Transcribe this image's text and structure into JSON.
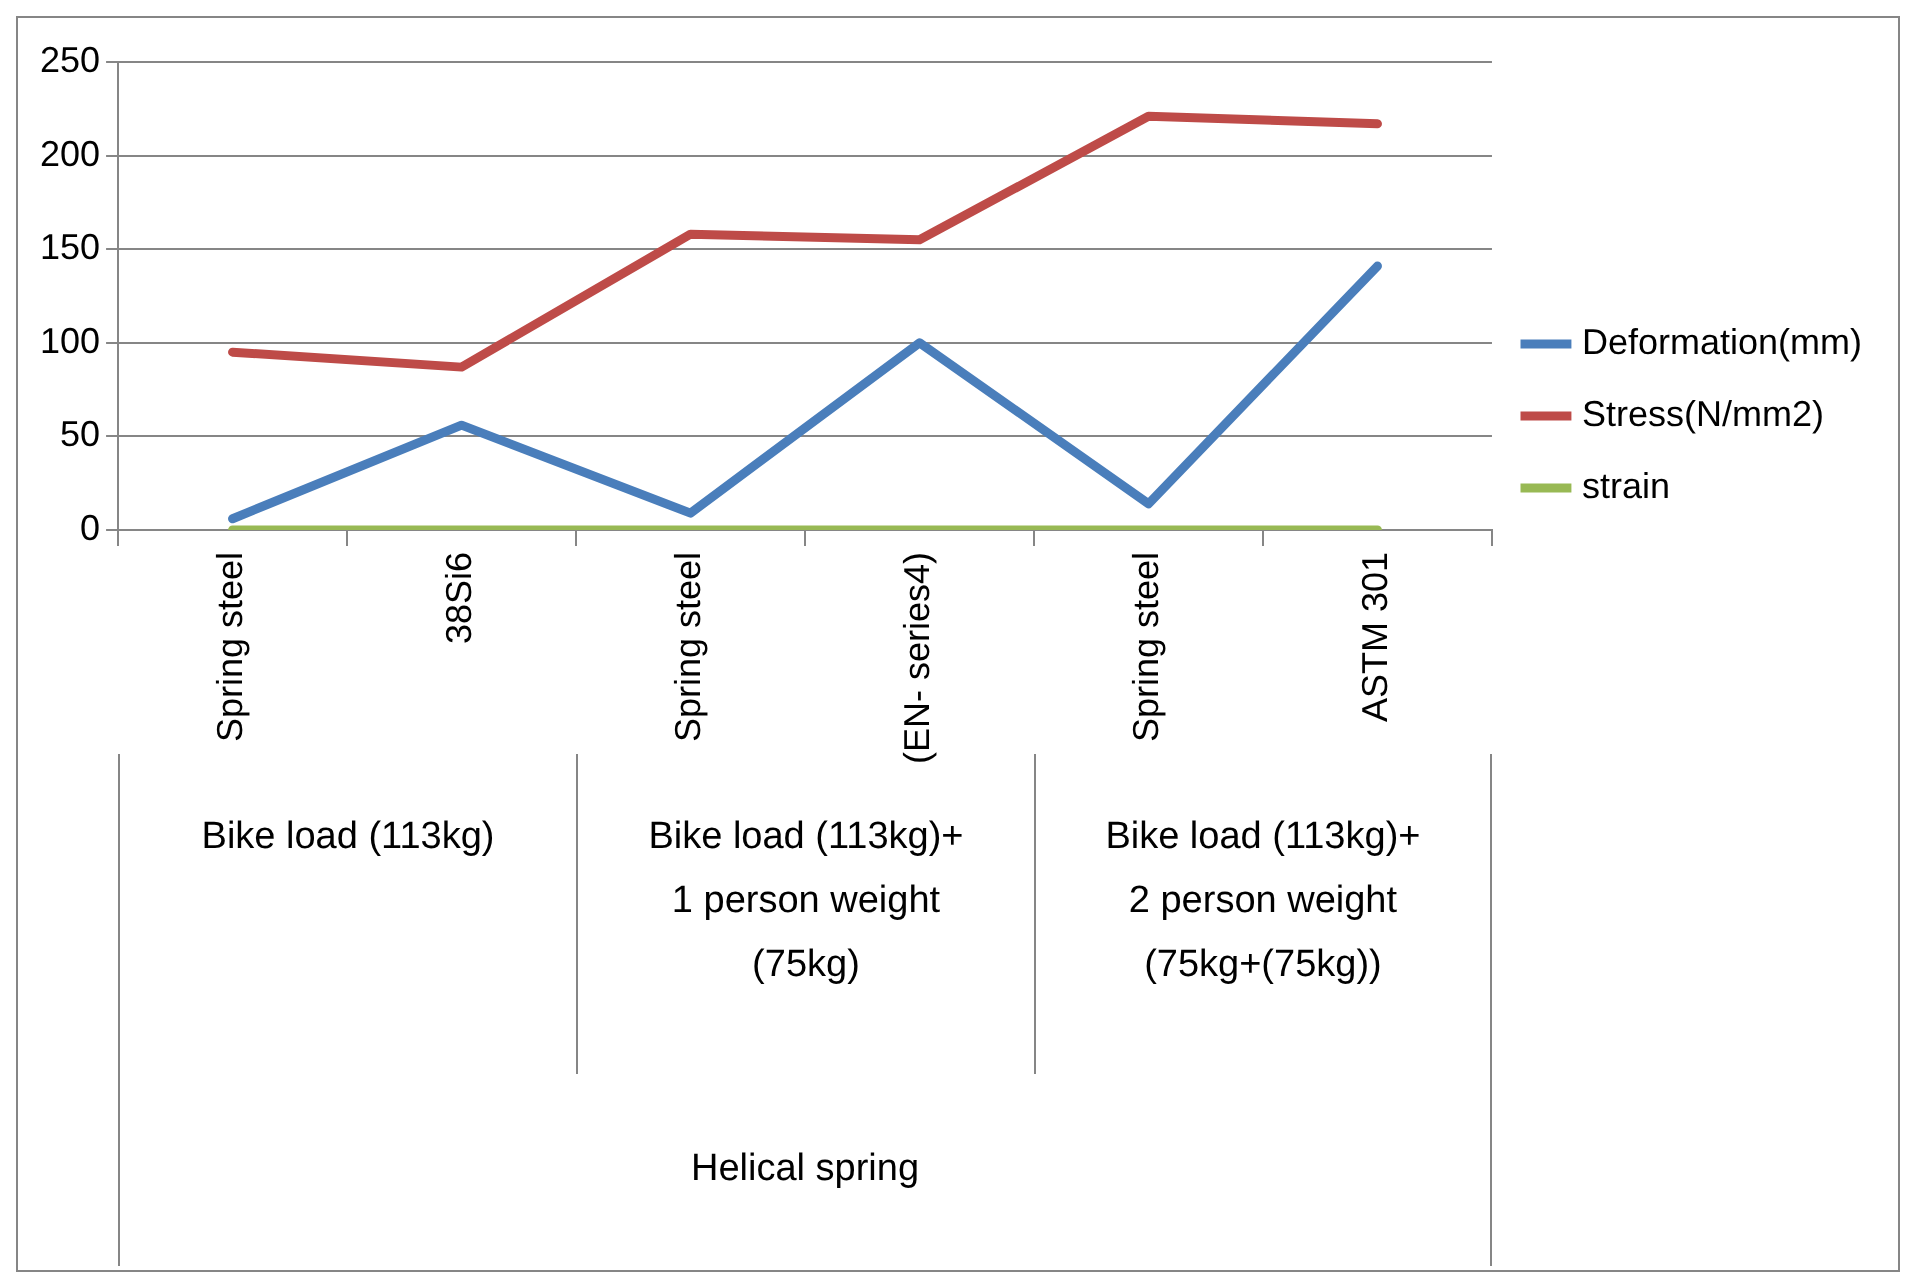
{
  "chart_data": {
    "type": "line",
    "categories": [
      "Spring steel",
      "38Si6",
      "Spring steel",
      "(EN- series4)",
      "Spring steel",
      "ASTM 301"
    ],
    "series": [
      {
        "name": "Deformation(mm)",
        "color": "#4a7ebb",
        "values": [
          6,
          56,
          9,
          100,
          14,
          141
        ]
      },
      {
        "name": "Stress(N/mm2)",
        "color": "#be4b48",
        "values": [
          95,
          87,
          158,
          155,
          221,
          217
        ]
      },
      {
        "name": "strain",
        "color": "#98b954",
        "values": [
          0,
          0,
          0,
          0,
          0,
          0
        ]
      }
    ],
    "annotations": [
      "Bike load (113kg)",
      "Bike load (113kg)+ 1 person weight (75kg)",
      "Bike load (113kg)+ 2 person weight (75kg+(75kg))",
      "Helical spring"
    ],
    "ylim": [
      0,
      250
    ],
    "yticks": [
      0,
      50,
      100,
      150,
      200,
      250
    ],
    "grid": "y",
    "legend": "right",
    "marker": "none",
    "line_style": "solid"
  }
}
